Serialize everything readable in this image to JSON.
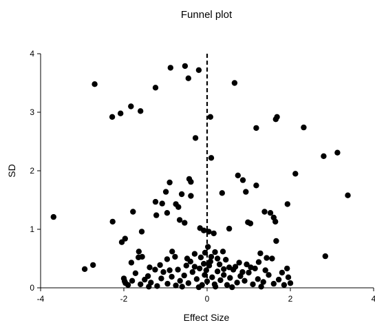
{
  "chart_data": {
    "type": "scatter",
    "title": "Funnel plot",
    "xlabel": "Effect Size",
    "ylabel": "SD",
    "xlim": [
      -4,
      4
    ],
    "ylim": [
      0,
      4
    ],
    "x_ticks": [
      "-4",
      "-2",
      "0",
      "2",
      "4"
    ],
    "y_ticks": [
      "0",
      "1",
      "2",
      "3",
      "4"
    ],
    "grid": false,
    "legend": "none",
    "reference_line": {
      "x": 0,
      "style": "dashed"
    },
    "marker_color": "#000000",
    "series": [
      {
        "points": [
          [
            -2.7,
            3.48
          ],
          [
            -2.28,
            2.92
          ],
          [
            -2.08,
            2.98
          ],
          [
            -1.83,
            3.1
          ],
          [
            -1.6,
            3.02
          ],
          [
            -1.24,
            3.42
          ],
          [
            -0.88,
            3.76
          ],
          [
            -0.53,
            3.79
          ],
          [
            -0.45,
            3.58
          ],
          [
            -0.2,
            3.72
          ],
          [
            0.66,
            3.5
          ],
          [
            1.68,
            2.92
          ],
          [
            1.65,
            2.88
          ],
          [
            1.18,
            2.73
          ],
          [
            2.32,
            2.74
          ],
          [
            0.08,
            2.92
          ],
          [
            -0.28,
            2.56
          ],
          [
            0.1,
            2.22
          ],
          [
            2.8,
            2.25
          ],
          [
            3.13,
            2.31
          ],
          [
            3.38,
            1.58
          ],
          [
            2.12,
            1.95
          ],
          [
            1.18,
            1.75
          ],
          [
            0.74,
            1.92
          ],
          [
            0.86,
            1.84
          ],
          [
            0.93,
            1.64
          ],
          [
            0.36,
            1.62
          ],
          [
            -0.43,
            1.86
          ],
          [
            -0.39,
            1.81
          ],
          [
            -0.9,
            1.8
          ],
          [
            -0.99,
            1.64
          ],
          [
            -0.61,
            1.6
          ],
          [
            -0.69,
            1.38
          ],
          [
            -0.39,
            1.57
          ],
          [
            -1.24,
            1.47
          ],
          [
            -1.08,
            1.44
          ],
          [
            -0.75,
            1.43
          ],
          [
            -1.22,
            1.24
          ],
          [
            -0.96,
            1.28
          ],
          [
            -1.78,
            1.3
          ],
          [
            -3.69,
            1.21
          ],
          [
            -2.27,
            1.13
          ],
          [
            -1.97,
            0.84
          ],
          [
            -2.05,
            0.78
          ],
          [
            -1.57,
            0.96
          ],
          [
            -1.65,
            0.52
          ],
          [
            -1.82,
            0.43
          ],
          [
            -1.38,
            0.35
          ],
          [
            -1.13,
            0.39
          ],
          [
            -0.66,
            1.16
          ],
          [
            -0.54,
            1.11
          ],
          [
            -0.17,
            1.02
          ],
          [
            -0.08,
            0.98
          ],
          [
            0.04,
            0.96
          ],
          [
            0.16,
            0.93
          ],
          [
            0.53,
            1.01
          ],
          [
            0.98,
            1.12
          ],
          [
            1.04,
            1.1
          ],
          [
            1.38,
            1.3
          ],
          [
            1.52,
            1.28
          ],
          [
            1.6,
            1.2
          ],
          [
            1.64,
            1.13
          ],
          [
            1.93,
            1.43
          ],
          [
            1.66,
            0.8
          ],
          [
            1.28,
            0.59
          ],
          [
            1.24,
            0.44
          ],
          [
            1.43,
            0.51
          ],
          [
            1.56,
            0.5
          ],
          [
            2.84,
            0.54
          ],
          [
            -2.94,
            0.32
          ],
          [
            -2.74,
            0.39
          ],
          [
            -0.84,
            0.62
          ],
          [
            -0.96,
            0.49
          ],
          [
            -0.77,
            0.53
          ],
          [
            -0.48,
            0.5
          ],
          [
            0.19,
            0.61
          ],
          [
            0.38,
            0.62
          ],
          [
            0.77,
            0.43
          ],
          [
            -0.08,
            0.41
          ],
          [
            0.08,
            0.45
          ],
          [
            0.53,
            0.35
          ],
          [
            -1.64,
            0.62
          ],
          [
            -1.56,
            0.53
          ],
          [
            -2.0,
            0.16
          ],
          [
            -1.96,
            0.08
          ],
          [
            -1.9,
            0.05
          ],
          [
            -1.8,
            0.12
          ],
          [
            -1.6,
            0.06
          ],
          [
            -1.5,
            0.14
          ],
          [
            -1.35,
            0.09
          ],
          [
            -1.2,
            0.03
          ],
          [
            -1.1,
            0.16
          ],
          [
            -0.95,
            0.07
          ],
          [
            -0.85,
            0.19
          ],
          [
            -0.75,
            0.04
          ],
          [
            -0.65,
            0.12
          ],
          [
            -0.55,
            0.21
          ],
          [
            -0.45,
            0.08
          ],
          [
            -0.35,
            0.27
          ],
          [
            -0.25,
            0.15
          ],
          [
            -0.18,
            0.33
          ],
          [
            -0.12,
            0.05
          ],
          [
            -0.06,
            0.22
          ],
          [
            0.0,
            0.11
          ],
          [
            0.05,
            0.38
          ],
          [
            0.12,
            0.18
          ],
          [
            0.18,
            0.06
          ],
          [
            0.25,
            0.28
          ],
          [
            0.32,
            0.13
          ],
          [
            0.4,
            0.22
          ],
          [
            0.48,
            0.05
          ],
          [
            0.55,
            0.17
          ],
          [
            0.63,
            0.31
          ],
          [
            0.72,
            0.09
          ],
          [
            0.8,
            0.2
          ],
          [
            0.9,
            0.12
          ],
          [
            1.0,
            0.26
          ],
          [
            1.1,
            0.06
          ],
          [
            1.22,
            0.15
          ],
          [
            1.35,
            0.1
          ],
          [
            1.48,
            0.22
          ],
          [
            1.6,
            0.07
          ],
          [
            1.72,
            0.14
          ],
          [
            1.85,
            0.05
          ],
          [
            1.95,
            0.18
          ],
          [
            2.0,
            0.08
          ],
          [
            1.92,
            0.33
          ],
          [
            1.8,
            0.26
          ],
          [
            -1.98,
            0.11
          ],
          [
            -1.72,
            0.25
          ],
          [
            -1.42,
            0.2
          ],
          [
            -1.05,
            0.27
          ],
          [
            -0.7,
            0.31
          ],
          [
            -0.3,
            0.36
          ],
          [
            0.3,
            0.4
          ],
          [
            0.68,
            0.36
          ],
          [
            1.05,
            0.35
          ],
          [
            1.4,
            0.3
          ],
          [
            -0.6,
            0.02
          ],
          [
            -0.2,
            0.01
          ],
          [
            0.2,
            0.02
          ],
          [
            0.6,
            0.01
          ],
          [
            1.3,
            0.02
          ],
          [
            -1.4,
            0.02
          ],
          [
            -0.9,
            0.3
          ],
          [
            0.95,
            0.4
          ],
          [
            -0.4,
            0.45
          ],
          [
            0.45,
            0.48
          ],
          [
            -0.15,
            0.52
          ],
          [
            0.1,
            0.53
          ],
          [
            -1.25,
            0.31
          ],
          [
            1.15,
            0.33
          ],
          [
            -0.05,
            0.6
          ],
          [
            0.02,
            0.7
          ],
          [
            0.25,
            0.5
          ],
          [
            -0.3,
            0.58
          ],
          [
            0.85,
            0.27
          ],
          [
            -0.5,
            0.38
          ],
          [
            0.4,
            0.32
          ],
          [
            -0.02,
            0.3
          ]
        ]
      }
    ]
  }
}
